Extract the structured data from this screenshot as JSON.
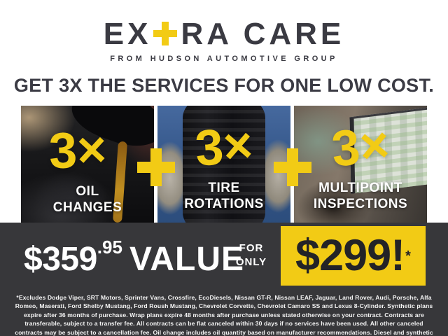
{
  "colors": {
    "accent_yellow": "#f2cb15",
    "band_background": "#37373a",
    "text_dark": "#3a3a42",
    "text_white": "#ffffff"
  },
  "logo": {
    "part1": "EX",
    "plus_icon": "+",
    "part2": "RA CARE",
    "subtitle": "FROM HUDSON AUTOMOTIVE GROUP"
  },
  "headline": "GET 3X THE SERVICES FOR ONE LOW COST.",
  "panels": [
    {
      "multiplier": "3×",
      "label_line1": "OIL",
      "label_line2": "CHANGES",
      "photo": "oil-pour-photo"
    },
    {
      "multiplier": "3×",
      "label_line1": "TIRE",
      "label_line2": "ROTATIONS",
      "photo": "tire-hold-photo"
    },
    {
      "multiplier": "3×",
      "label_line1": "MULTIPOINT",
      "label_line2": "INSPECTIONS",
      "photo": "laptop-inspection-photo"
    }
  ],
  "separators": {
    "plus_icon": "+"
  },
  "offer": {
    "value_dollars": "$359",
    "value_cents": ".95",
    "value_word": "VALUE",
    "for_line1": "FOR",
    "for_line2": "ONLY",
    "sale_price": "$299!",
    "footnote_marker": "*"
  },
  "disclaimer": "*Excludes Dodge Viper, SRT Motors, Sprinter Vans, Crossfire, EcoDiesels, Nissan GT-R, Nissan LEAF, Jaguar, Land Rover, Audi, Porsche, Alfa Romeo, Maserati, Ford Shelby Mustang, Ford Roush Mustang, Chevrolet Corvette, Chevrolet Camaro SS and Lexus 8-Cylinder. Synthetic plans expire after 36 months of purchase. Wrap plans expire 48 months after purchase unless stated otherwise on your contract. Contracts are transferable, subject to a transfer fee. All contracts can be flat canceled within 30 days if no services have been used. All other canceled contracts may be subject to a cancellation fee. Oil change includes oil quantity based on manufacturer recommendations. Diesel and synthetic upgrades are extra. See dealer for full details."
}
